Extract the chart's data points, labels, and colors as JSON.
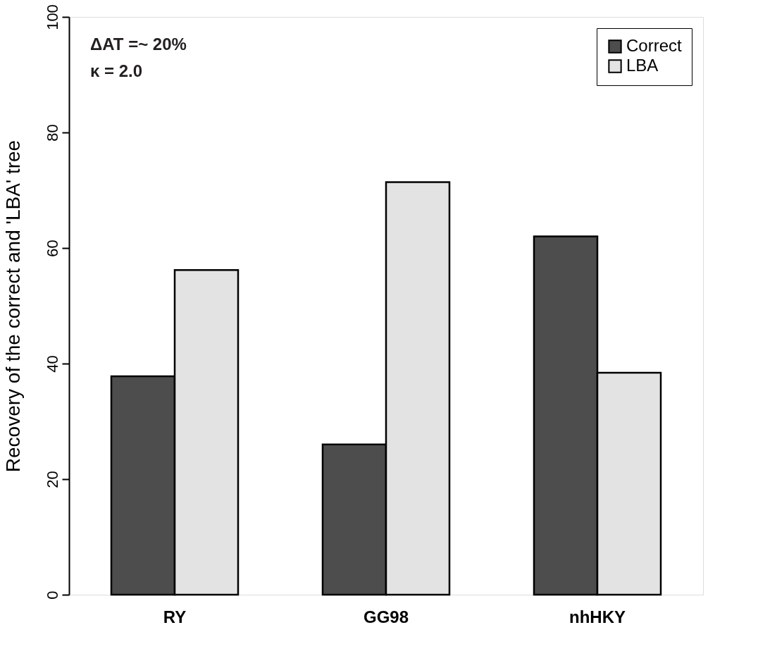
{
  "chart_data": {
    "type": "bar",
    "ylabel": "Recovery of the correct and 'LBA' tree",
    "categories": [
      "RY",
      "GG98",
      "nhHKY"
    ],
    "series": [
      {
        "name": "Correct",
        "color": "#4d4d4d",
        "values": [
          37.8,
          26.0,
          62.0
        ]
      },
      {
        "name": "LBA",
        "color": "#e3e3e3",
        "values": [
          56.2,
          71.4,
          38.4
        ]
      }
    ],
    "ylim": [
      0,
      100
    ],
    "yticks": [
      0,
      20,
      40,
      60,
      80,
      100
    ],
    "grid": false,
    "legend": "top right",
    "annotations": [
      "ΔAT =~ 20%",
      "κ = 2.0"
    ]
  }
}
